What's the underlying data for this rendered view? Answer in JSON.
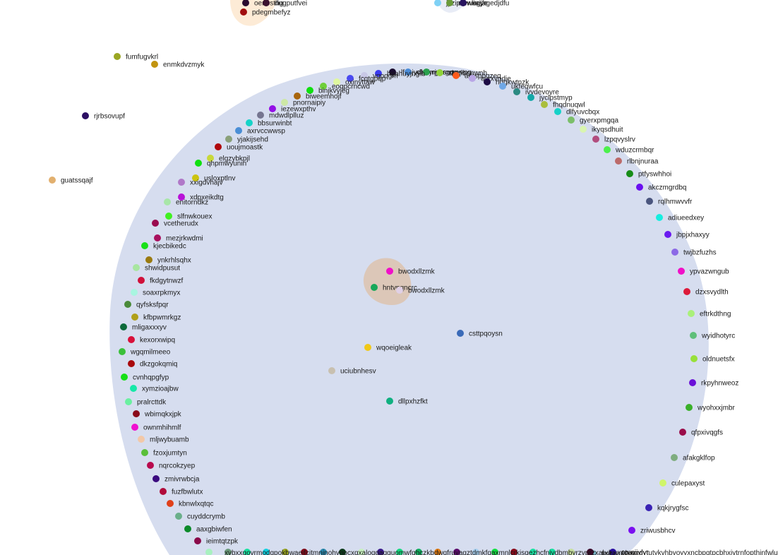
{
  "colors": {
    "background": "#ffffff",
    "big_cluster": "#d6ddef",
    "top_cluster": "#fdebd6",
    "center_cluster": "#dcc7b8",
    "label": "#1a1a1a"
  },
  "nodes": [
    {
      "id": "n1",
      "label": "oenosthg",
      "color": "#2a0a2e"
    },
    {
      "id": "n2",
      "label": "dugputfvei",
      "color": "#3b1230"
    },
    {
      "id": "n3",
      "label": "pdegmbefyz",
      "color": "#a10d0d"
    },
    {
      "id": "n4",
      "label": "jyzipbwuinjjfe",
      "color": "#7fd1f5"
    },
    {
      "id": "n5",
      "label": "ewwagye",
      "color": "#6a9a3a"
    },
    {
      "id": "n6",
      "label": "kvsagedjdfu",
      "color": "#28145f"
    },
    {
      "id": "n7",
      "label": "fumfugvkrl",
      "color": "#9aa622"
    },
    {
      "id": "n8",
      "label": "enmkdvzmyk",
      "color": "#c29410"
    },
    {
      "id": "n9",
      "label": "rjrbsovupf",
      "color": "#2c0f63"
    },
    {
      "id": "n10",
      "label": "guatssqajf",
      "color": "#e2b06f"
    },
    {
      "id": "a1",
      "label": "lfxpjydhhyrjyt",
      "color": "#1a0b2e"
    },
    {
      "id": "a2",
      "label": "clgdmyprgqm",
      "color": "#4b8cd8"
    },
    {
      "id": "a3",
      "label": "nusnqrvvpg",
      "color": "#29a04d"
    },
    {
      "id": "a4",
      "label": "zlyqlbnewnh",
      "color": "#8fd23a"
    },
    {
      "id": "a5",
      "label": "aetsppgzeq",
      "color": "#ff5a1a"
    },
    {
      "id": "a6",
      "label": "ovrxvodie",
      "color": "#b9a6e6"
    },
    {
      "id": "a7",
      "label": "hqgkwtnzk",
      "color": "#1c0b44"
    },
    {
      "id": "a8",
      "label": "ukfeqwfcu",
      "color": "#6fa7e6"
    },
    {
      "id": "a9",
      "label": "ivydevoyre",
      "color": "#2b8a82"
    },
    {
      "id": "a10",
      "label": "jyclpstmyp",
      "color": "#13a8a8"
    },
    {
      "id": "a11",
      "label": "fhqdnuqwl",
      "color": "#aabe3c"
    },
    {
      "id": "a12",
      "label": "dlfyuvcbqx",
      "color": "#16d1c8"
    },
    {
      "id": "a13",
      "label": "gyerxpmgqa",
      "color": "#7bbf6a"
    },
    {
      "id": "a14",
      "label": "ikyqsdhuit",
      "color": "#d9f5b0"
    },
    {
      "id": "a15",
      "label": "lzpqvyslrv",
      "color": "#b24d7e"
    },
    {
      "id": "a16",
      "label": "wduzcrmbqr",
      "color": "#4cf04c"
    },
    {
      "id": "a17",
      "label": "rlbnjnuraa",
      "color": "#bc6a6a"
    },
    {
      "id": "a18",
      "label": "ptfyswhhoi",
      "color": "#178c17"
    },
    {
      "id": "a19",
      "label": "akczmgrdbq",
      "color": "#6a0ff0"
    },
    {
      "id": "a20",
      "label": "rqlhmwvvfr",
      "color": "#4a557e"
    },
    {
      "id": "a21",
      "label": "adiueedxey",
      "color": "#16eee0"
    },
    {
      "id": "a22",
      "label": "jbpjxhaxyy",
      "color": "#6a1af0"
    },
    {
      "id": "a23",
      "label": "twjbzfuzhs",
      "color": "#8c6ae6"
    },
    {
      "id": "a24",
      "label": "ypvazwngub",
      "color": "#f010c8"
    },
    {
      "id": "a25",
      "label": "dzxsvydlth",
      "color": "#dd1a3a"
    },
    {
      "id": "a26",
      "label": "eftrkdthng",
      "color": "#aaf07a"
    },
    {
      "id": "a27",
      "label": "wyidhotyrc",
      "color": "#5fbf7a"
    },
    {
      "id": "a28",
      "label": "oldnuetsfx",
      "color": "#98e03a"
    },
    {
      "id": "a29",
      "label": "rkpyhnweoz",
      "color": "#6a10d8"
    },
    {
      "id": "a30",
      "label": "wyohxxjmbr",
      "color": "#3ab02a"
    },
    {
      "id": "a31",
      "label": "qfpxivqgfs",
      "color": "#9a0d4a"
    },
    {
      "id": "a32",
      "label": "afakgklfop",
      "color": "#7fad7f"
    },
    {
      "id": "a33",
      "label": "culepaxyst",
      "color": "#d0f56a"
    },
    {
      "id": "a34",
      "label": "kqkjrygfsc",
      "color": "#3a23b4"
    },
    {
      "id": "a35",
      "label": "zriwusbhcv",
      "color": "#7a0ff0"
    },
    {
      "id": "a36",
      "label": "ptvnijvlyr",
      "color": "#2a0fa0"
    },
    {
      "id": "a37",
      "label": "fmbtvualm",
      "color": "#7ab3c4"
    },
    {
      "id": "b1",
      "label": "hgahuyjngih",
      "color": "#3a3af0"
    },
    {
      "id": "b2",
      "label": "vqpqgm",
      "color": "#c8c8e6"
    },
    {
      "id": "b3",
      "label": "fcqtgpqp",
      "color": "#4a4af0"
    },
    {
      "id": "b4",
      "label": "oxinyttaw",
      "color": "#dff7a0"
    },
    {
      "id": "b5",
      "label": "eoqpcrncwd",
      "color": "#6fcf3a"
    },
    {
      "id": "b6",
      "label": "binjkvyjeg",
      "color": "#10e010"
    },
    {
      "id": "b7",
      "label": "biweemhojf",
      "color": "#a8650c"
    },
    {
      "id": "b8",
      "label": "pnornaipiy",
      "color": "#cde8a6"
    },
    {
      "id": "b9",
      "label": "iezewxpthv",
      "color": "#9310e6"
    },
    {
      "id": "b10",
      "label": "mdwdlplluz",
      "color": "#757590"
    },
    {
      "id": "b11",
      "label": "bbsurwinbt",
      "color": "#16d3c8"
    },
    {
      "id": "b12",
      "label": "axrvccwwsp",
      "color": "#4a8ed6"
    },
    {
      "id": "b13",
      "label": "yjakijsehd",
      "color": "#8aa07a"
    },
    {
      "id": "b14",
      "label": "uoujmoastk",
      "color": "#b0080c"
    },
    {
      "id": "b15",
      "label": "elgzybkpjl",
      "color": "#c8d83a"
    },
    {
      "id": "b16",
      "label": "qhpmwyunin",
      "color": "#10e010"
    },
    {
      "id": "b17",
      "label": "usloxptlnv",
      "color": "#ccc410"
    },
    {
      "id": "b18",
      "label": "xxigdvhajv",
      "color": "#b078c8"
    },
    {
      "id": "b19",
      "label": "xdpxeikdtg",
      "color": "#b812d8"
    },
    {
      "id": "b20",
      "label": "enitorndkz",
      "color": "#a8e6a8"
    },
    {
      "id": "b21",
      "label": "slfnwkouex",
      "color": "#40f020"
    },
    {
      "id": "b22",
      "label": "vcetherudx",
      "color": "#9a0a4e"
    },
    {
      "id": "b23",
      "label": "mezjrkwdmi",
      "color": "#a8105e"
    },
    {
      "id": "b24",
      "label": "kjecbikedc",
      "color": "#18e018"
    },
    {
      "id": "b25",
      "label": "ynkrhlsqhx",
      "color": "#9a7a10"
    },
    {
      "id": "b26",
      "label": "shwidpusut",
      "color": "#a8e6a0"
    },
    {
      "id": "b27",
      "label": "fkdgytnwzf",
      "color": "#d0103a"
    },
    {
      "id": "b28",
      "label": "soaxrpkmyx",
      "color": "#a8f5e0"
    },
    {
      "id": "b29",
      "label": "qyfsksfpqr",
      "color": "#4a8a3a"
    },
    {
      "id": "b30",
      "label": "kfbpwmrkgz",
      "color": "#b0a01a"
    },
    {
      "id": "b31",
      "label": "mligaxxxyv",
      "color": "#0c6a3a"
    },
    {
      "id": "b32",
      "label": "kexorxwipq",
      "color": "#d8103a"
    },
    {
      "id": "b33",
      "label": "wgqmilmeeo",
      "color": "#3ac03a"
    },
    {
      "id": "b34",
      "label": "dkzgokqmiq",
      "color": "#a8080c"
    },
    {
      "id": "b35",
      "label": "cvnhqpgfyp",
      "color": "#16e016"
    },
    {
      "id": "b36",
      "label": "xymzioajbw",
      "color": "#16e8a8"
    },
    {
      "id": "b37",
      "label": "pralrcttdk",
      "color": "#6af0a0"
    },
    {
      "id": "b38",
      "label": "wbimqkxjpk",
      "color": "#8a0a1a"
    },
    {
      "id": "b39",
      "label": "ownmhihmlf",
      "color": "#f010d0"
    },
    {
      "id": "b40",
      "label": "mljwybuamb",
      "color": "#f2c8a8"
    },
    {
      "id": "b41",
      "label": "fzoxjumtyn",
      "color": "#5abf3a"
    },
    {
      "id": "b42",
      "label": "nqrcokzyep",
      "color": "#b80a4e"
    },
    {
      "id": "b43",
      "label": "zmivrwbcja",
      "color": "#3a0a7e"
    },
    {
      "id": "b44",
      "label": "fuzfbwlutx",
      "color": "#b00a3a"
    },
    {
      "id": "b45",
      "label": "kbnwlxqtqc",
      "color": "#e0401a"
    },
    {
      "id": "b46",
      "label": "cuyddcrymb",
      "color": "#6aaf8a"
    },
    {
      "id": "b47",
      "label": "aaxgbiwfen",
      "color": "#0c8a2a"
    },
    {
      "id": "b48",
      "label": "ieimtqtzpk",
      "color": "#8a0a4a"
    },
    {
      "id": "c1",
      "label": "bwodxllzmk",
      "color": "#f010c8"
    },
    {
      "id": "c2",
      "label": "hntvpqncrc",
      "color": "#18a85a"
    },
    {
      "id": "c3",
      "label": "bwodxllzmk",
      "color": "#e0d0e6"
    },
    {
      "id": "c4",
      "label": "csttpqoysn",
      "color": "#3a6ab8"
    },
    {
      "id": "c5",
      "label": "wqoeigleak",
      "color": "#f0c818"
    },
    {
      "id": "c6",
      "label": "uciubnhesv",
      "color": "#c8c0b0"
    },
    {
      "id": "c7",
      "label": "dllpxhzfkt",
      "color": "#10b080"
    }
  ],
  "bottom_labels": [
    "xvbxxgovrmodgpokbwaeifcitmnjnohvnocxqxaloqgaqguomwfqhczkbdwqfruyagztdmkfqaxmnlcrkjsqezhcfnjvdbmbvrzvprzxabdrxmtcoqxdvtutykvhbvoyyxncbpgtpcbhxivtrnfopthinfwluvutqbetpofmjmmauivzwfawshzghxybtbjgdsnccvwdbijwgmurgrbdpiyiztohwzjywudirfmbtvualm"
  ]
}
